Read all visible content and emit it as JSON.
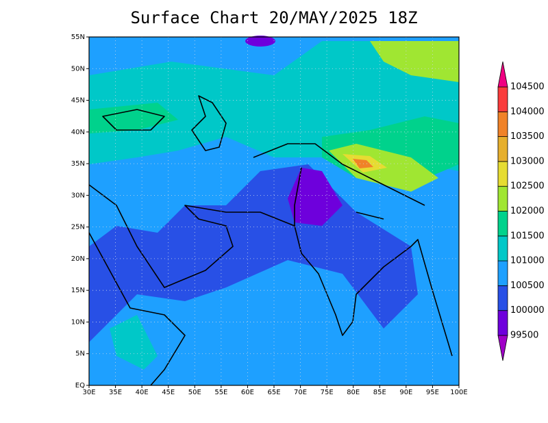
{
  "title": "Surface Chart 20/MAY/2025 18Z",
  "x_axis": {
    "labels": [
      "30E",
      "35E",
      "40E",
      "45E",
      "50E",
      "55E",
      "60E",
      "65E",
      "70E",
      "75E",
      "80E",
      "85E",
      "90E",
      "95E",
      "100E"
    ]
  },
  "y_axis": {
    "labels": [
      "EQ",
      "5N",
      "10N",
      "15N",
      "20N",
      "25N",
      "30N",
      "35N",
      "40N",
      "45N",
      "50N",
      "55N"
    ]
  },
  "colorbar": {
    "levels": [
      99500,
      100000,
      100500,
      101000,
      101500,
      102000,
      102500,
      103000,
      103500,
      104000,
      104500
    ],
    "colors": [
      "#a000c8",
      "#6e00dc",
      "#2850e6",
      "#1ea0ff",
      "#00c8c8",
      "#00d28c",
      "#a0e632",
      "#e6dc32",
      "#e6af2d",
      "#f08228",
      "#fa3c3c",
      "#f00082"
    ]
  }
}
